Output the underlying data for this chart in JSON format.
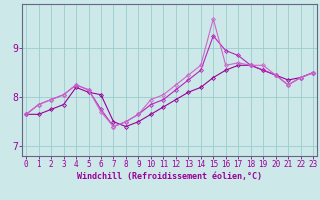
{
  "xlabel": "Windchill (Refroidissement éolien,°C)",
  "bg_color": "#cce8e8",
  "grid_color": "#99cccc",
  "spine_color": "#666688",
  "line_color_dark": "#990099",
  "line_color_mid": "#bb22bb",
  "line_color_light": "#cc66cc",
  "hours": [
    0,
    1,
    2,
    3,
    4,
    5,
    6,
    7,
    8,
    9,
    10,
    11,
    12,
    13,
    14,
    15,
    16,
    17,
    18,
    19,
    20,
    21,
    22,
    23
  ],
  "series1": [
    7.65,
    7.65,
    7.75,
    7.85,
    8.2,
    8.1,
    8.05,
    7.5,
    7.4,
    7.5,
    7.65,
    7.8,
    7.95,
    8.1,
    8.2,
    8.4,
    8.55,
    8.65,
    8.65,
    8.55,
    8.45,
    8.35,
    8.4,
    8.5
  ],
  "series2": [
    7.65,
    7.85,
    7.95,
    8.05,
    8.25,
    8.15,
    7.75,
    7.4,
    7.5,
    7.65,
    7.85,
    7.95,
    8.15,
    8.35,
    8.55,
    9.25,
    8.95,
    8.85,
    8.65,
    8.55,
    8.45,
    8.25,
    8.4,
    8.5
  ],
  "series3": [
    7.65,
    7.85,
    7.95,
    8.05,
    8.25,
    8.15,
    7.7,
    7.4,
    7.5,
    7.65,
    7.95,
    8.05,
    8.25,
    8.45,
    8.65,
    9.6,
    8.65,
    8.7,
    8.65,
    8.65,
    8.45,
    8.25,
    8.4,
    8.5
  ],
  "ylim": [
    6.8,
    9.9
  ],
  "yticks": [
    7,
    8,
    9
  ],
  "tick_fontsize": 5.5,
  "label_fontsize": 6.0
}
